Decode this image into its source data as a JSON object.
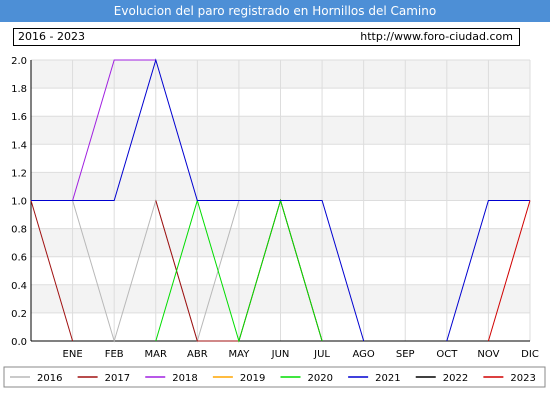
{
  "title": "Evolucion del paro registrado en Hornillos del Camino",
  "info": {
    "years": "2016 - 2023",
    "url": "http://www.foro-ciudad.com"
  },
  "chart_data": {
    "type": "line",
    "title": "Evolucion del paro registrado en Hornillos del Camino",
    "xlabel": "",
    "ylabel": "",
    "categories": [
      "",
      "ENE",
      "FEB",
      "MAR",
      "ABR",
      "MAY",
      "JUN",
      "JUL",
      "AGO",
      "SEP",
      "OCT",
      "NOV",
      "DIC"
    ],
    "ylim": [
      0,
      2.0
    ],
    "yticks": [
      "0.0",
      "0.2",
      "0.4",
      "0.6",
      "0.8",
      "1.0",
      "1.2",
      "1.4",
      "1.6",
      "1.8",
      "2.0"
    ],
    "grid": true,
    "legend_position": "bottom",
    "series": [
      {
        "name": "2016",
        "color": "#b8b8b8",
        "values": [
          1,
          1,
          0,
          1,
          0,
          1,
          1,
          0,
          null,
          null,
          null,
          null,
          null
        ]
      },
      {
        "name": "2017",
        "color": "#a01010",
        "values": [
          1,
          0,
          null,
          1,
          0,
          0,
          1,
          0,
          null,
          null,
          null,
          null,
          null
        ]
      },
      {
        "name": "2018",
        "color": "#a020e0",
        "values": [
          1,
          1,
          2,
          2,
          null,
          null,
          null,
          null,
          null,
          null,
          null,
          null,
          null
        ]
      },
      {
        "name": "2019",
        "color": "#ffa500",
        "values": [
          null,
          null,
          null,
          null,
          null,
          null,
          null,
          null,
          null,
          null,
          null,
          null,
          null
        ]
      },
      {
        "name": "2020",
        "color": "#00dd00",
        "values": [
          null,
          null,
          null,
          0,
          1,
          0,
          1,
          0,
          null,
          null,
          null,
          null,
          null
        ]
      },
      {
        "name": "2021",
        "color": "#0000d0",
        "values": [
          1,
          1,
          1,
          2,
          1,
          1,
          1,
          1,
          0,
          null,
          0,
          1,
          1
        ]
      },
      {
        "name": "2022",
        "color": "#000000",
        "values": [
          null,
          null,
          null,
          null,
          null,
          null,
          null,
          null,
          null,
          null,
          null,
          null,
          null
        ]
      },
      {
        "name": "2023",
        "color": "#d00000",
        "values": [
          null,
          null,
          null,
          null,
          null,
          null,
          null,
          null,
          null,
          null,
          null,
          0,
          1
        ]
      }
    ]
  }
}
